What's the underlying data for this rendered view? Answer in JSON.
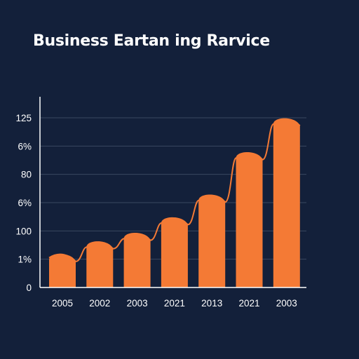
{
  "chart_data": {
    "type": "bar",
    "title": "Business Eartan ing Rarvice",
    "categories": [
      "2005",
      "2002",
      "2003",
      "2021",
      "2013",
      "2021",
      "2003"
    ],
    "values": [
      1.2,
      1.65,
      1.95,
      2.5,
      3.3,
      4.8,
      6.0
    ],
    "y_tick_labels": [
      "0",
      "1%",
      "100",
      "6%",
      "80",
      "6%",
      "125"
    ],
    "ylim": [
      0,
      6
    ],
    "grid": true,
    "legend": "none",
    "xlabel": "",
    "ylabel": ""
  },
  "colors": {
    "background": "#13203a",
    "bar": "#f47a35",
    "curve": "#f47a35",
    "grid": "#3a4760",
    "axis": "#ffffff"
  }
}
